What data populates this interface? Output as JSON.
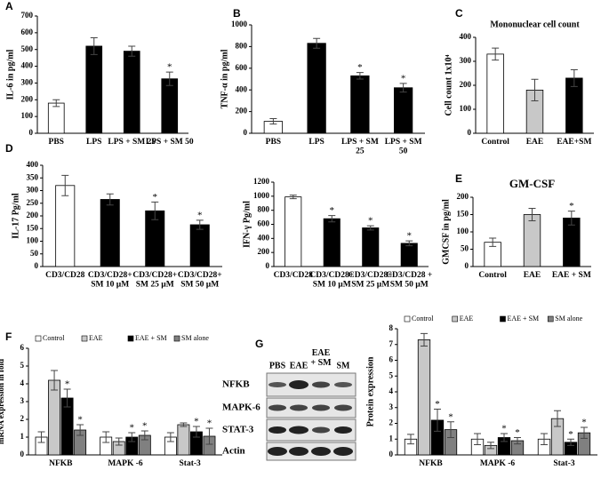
{
  "chart_data": [
    {
      "type": "bar",
      "panel": "A",
      "ylabel": "IL-6 in pg/ml",
      "categories": [
        "PBS",
        "LPS",
        "LPS + SM 25",
        "LPS + SM 50"
      ],
      "values": [
        180,
        520,
        490,
        325
      ],
      "errors": [
        20,
        50,
        30,
        40
      ],
      "colors": [
        "#ffffff",
        "#000000",
        "#000000",
        "#000000"
      ],
      "significance": [
        null,
        null,
        null,
        "*"
      ],
      "ylim": [
        0,
        700
      ],
      "yticks": [
        0,
        100,
        200,
        300,
        400,
        500,
        600,
        700
      ]
    },
    {
      "type": "bar",
      "panel": "B",
      "ylabel": "TNF-α in pg/ml",
      "categories": [
        "PBS",
        "LPS",
        "LPS + SM\n25",
        "LPS + SM\n50"
      ],
      "values": [
        110,
        830,
        530,
        420
      ],
      "errors": [
        25,
        45,
        30,
        40
      ],
      "colors": [
        "#ffffff",
        "#000000",
        "#000000",
        "#000000"
      ],
      "significance": [
        null,
        null,
        "*",
        "*"
      ],
      "ylim": [
        0,
        1000
      ],
      "yticks": [
        0,
        200,
        400,
        600,
        800,
        1000
      ]
    },
    {
      "type": "bar",
      "panel": "C",
      "title": "Mononuclear cell count",
      "ylabel": "Cell count 1x10⁴",
      "categories": [
        "Control",
        "EAE",
        "EAE+SM"
      ],
      "values": [
        330,
        180,
        230
      ],
      "errors": [
        25,
        45,
        35
      ],
      "colors": [
        "#ffffff",
        "#c8c8c8",
        "#000000"
      ],
      "ylim": [
        0,
        400
      ],
      "yticks": [
        0,
        100,
        200,
        300,
        400
      ]
    },
    {
      "type": "bar",
      "panel": "D",
      "ylabel": "IL-17 Pg/ml",
      "categories": [
        "CD3/CD28",
        "CD3/CD28+\nSM 10 µM",
        "CD3/CD28+\nSM 25 µM",
        "CD3/CD28+\nSM 50 µM"
      ],
      "values": [
        320,
        265,
        220,
        165
      ],
      "errors": [
        40,
        22,
        35,
        18
      ],
      "colors": [
        "#ffffff",
        "#000000",
        "#000000",
        "#000000"
      ],
      "significance": [
        null,
        null,
        "*",
        "*"
      ],
      "ylim": [
        0,
        400
      ],
      "yticks": [
        0,
        50,
        100,
        150,
        200,
        250,
        300,
        350,
        400
      ]
    },
    {
      "type": "bar",
      "ylabel": "IFN-γ Pg/ml",
      "categories": [
        "CD3/CD28",
        "CD3/CD28+\nSM 10 µM",
        "CD3/CD28+\nSM 25 µM",
        "CD3/CD28 +\nSM 50 µM"
      ],
      "values": [
        990,
        680,
        550,
        330
      ],
      "errors": [
        25,
        45,
        30,
        35
      ],
      "colors": [
        "#ffffff",
        "#000000",
        "#000000",
        "#000000"
      ],
      "significance": [
        null,
        "*",
        "*",
        "*"
      ],
      "ylim": [
        0,
        1200
      ],
      "yticks": [
        0,
        200,
        400,
        600,
        800,
        1000,
        1200
      ]
    },
    {
      "type": "bar",
      "panel": "E",
      "title": "GM-CSF",
      "ylabel": "GMCSF in pg/ml",
      "categories": [
        "Control",
        "EAE",
        "EAE + SM"
      ],
      "values": [
        70,
        150,
        140
      ],
      "errors": [
        12,
        18,
        20
      ],
      "colors": [
        "#ffffff",
        "#c8c8c8",
        "#000000"
      ],
      "significance": [
        null,
        null,
        "*"
      ],
      "ylim": [
        0,
        200
      ],
      "yticks": [
        0,
        50,
        100,
        150,
        200
      ]
    },
    {
      "type": "bar",
      "panel": "F",
      "ylabel": "mRNA expression in fold",
      "categories": [
        "NFKB",
        "MAPK -6",
        "Stat-3"
      ],
      "series": [
        {
          "name": "Control",
          "color": "#ffffff",
          "values": [
            1,
            1,
            1
          ],
          "errors": [
            0.3,
            0.3,
            0.25
          ],
          "significance": [
            null,
            null,
            null
          ]
        },
        {
          "name": "EAE",
          "color": "#c8c8c8",
          "values": [
            4.2,
            0.75,
            1.7
          ],
          "errors": [
            0.55,
            0.2,
            0.1
          ],
          "significance": [
            null,
            null,
            null
          ]
        },
        {
          "name": "EAE + SM",
          "color": "#000000",
          "values": [
            3.2,
            1,
            1.3
          ],
          "errors": [
            0.5,
            0.25,
            0.3
          ],
          "significance": [
            "*",
            "*",
            "*"
          ]
        },
        {
          "name": "SM alone",
          "color": "#808080",
          "values": [
            1.4,
            1.1,
            1.05
          ],
          "errors": [
            0.3,
            0.25,
            0.45
          ],
          "significance": [
            "*",
            "*",
            "*"
          ]
        }
      ],
      "ylim": [
        0,
        6
      ],
      "yticks": [
        0,
        1,
        2,
        3,
        4,
        5,
        6
      ]
    },
    {
      "type": "bar",
      "ylabel": "Protein expression",
      "categories": [
        "NFKB",
        "MAPK -6",
        "Stat-3"
      ],
      "series": [
        {
          "name": "Control",
          "color": "#ffffff",
          "values": [
            1,
            1,
            1
          ],
          "errors": [
            0.3,
            0.35,
            0.35
          ],
          "significance": [
            null,
            null,
            null
          ]
        },
        {
          "name": "EAE",
          "color": "#c8c8c8",
          "values": [
            7.3,
            0.6,
            2.3
          ],
          "errors": [
            0.4,
            0.2,
            0.5
          ],
          "significance": [
            null,
            null,
            null
          ]
        },
        {
          "name": "EAE + SM",
          "color": "#000000",
          "values": [
            2.2,
            1.1,
            0.8
          ],
          "errors": [
            0.7,
            0.25,
            0.2
          ],
          "significance": [
            "*",
            "*",
            "*"
          ]
        },
        {
          "name": "SM alone",
          "color": "#808080",
          "values": [
            1.6,
            0.9,
            1.4
          ],
          "errors": [
            0.5,
            0.2,
            0.35
          ],
          "significance": [
            "*",
            "*",
            "*"
          ]
        }
      ],
      "ylim": [
        0,
        8
      ],
      "yticks": [
        0,
        1,
        2,
        3,
        4,
        5,
        6,
        7,
        8
      ]
    }
  ],
  "blot": {
    "panel": "G",
    "lanes": [
      "PBS",
      "EAE",
      "EAE\n+ SM",
      "SM"
    ],
    "rows": [
      "NFKB",
      "MAPK-6",
      "STAT-3",
      "Actin"
    ]
  }
}
